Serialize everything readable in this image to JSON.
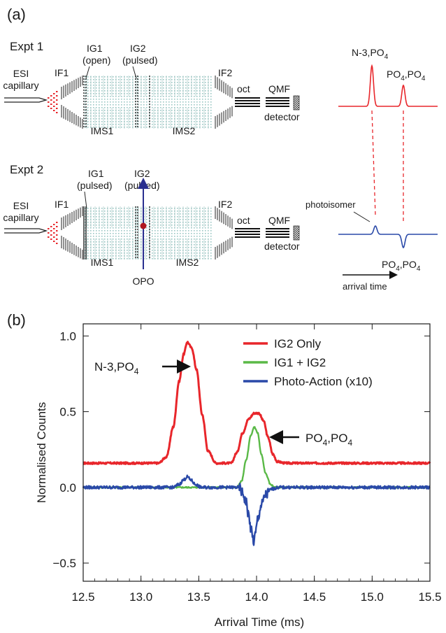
{
  "panel_a": {
    "label": "(a)",
    "expt1": {
      "title": "Expt 1",
      "esi_line1": "ESI",
      "esi_line2": "capillary",
      "if1": "IF1",
      "ig1_line1": "IG1",
      "ig1_line2": "(open)",
      "ig2_line1": "IG2",
      "ig2_line2": "(pulsed)",
      "ims1": "IMS1",
      "ims2": "IMS2",
      "if2": "IF2",
      "oct": "oct",
      "qmf": "QMF",
      "detector": "detector",
      "peak1_label": "N-3,PO",
      "peak1_sub": "4",
      "peak2_label_a": "PO",
      "peak2_sub_a": "4",
      "peak2_label_b": ",PO",
      "peak2_sub_b": "4"
    },
    "expt2": {
      "title": "Expt 2",
      "esi_line1": "ESI",
      "esi_line2": "capillary",
      "if1": "IF1",
      "ig1_line1": "IG1",
      "ig1_line2": "(pulsed)",
      "ig2_line1": "IG2",
      "ig2_line2": "(pulsed)",
      "ims1": "IMS1",
      "ims2": "IMS2",
      "if2": "IF2",
      "oct": "oct",
      "qmf": "QMF",
      "detector": "detector",
      "opo": "OPO",
      "photoisomer": "photoisomer",
      "peak_label_a": "PO",
      "peak_sub_a": "4",
      "peak_label_b": ",PO",
      "peak_sub_b": "4",
      "arrival_time": "arrival time"
    },
    "colors": {
      "expt1_trace": "#e8262b",
      "expt2_trace": "#2a49a8",
      "opo_beam": "#2a2f8f",
      "opo_dot": "#b0171f"
    }
  },
  "panel_b": {
    "label": "(b)",
    "annotation_left": "N-3,PO",
    "annotation_left_sub": "4",
    "annotation_right_a": "PO",
    "annotation_right_sub_a": "4",
    "annotation_right_b": ",PO",
    "annotation_right_sub_b": "4"
  },
  "chart_data": {
    "type": "line",
    "xlabel": "Arrival Time (ms)",
    "ylabel": "Normalised Counts",
    "xlim": [
      12.5,
      15.5
    ],
    "ylim": [
      -0.5,
      1.0
    ],
    "xticks": [
      "12.5",
      "13.0",
      "13.5",
      "14.0",
      "14.5",
      "15.0",
      "15.5"
    ],
    "yticks": [
      "−0.5",
      "0.0",
      "0.5",
      "1.0"
    ],
    "legend_position": "top-right",
    "series": [
      {
        "name": "IG2 Only",
        "color": "#e8262b",
        "x": [
          12.5,
          13.15,
          13.22,
          13.28,
          13.33,
          13.37,
          13.4,
          13.44,
          13.48,
          13.53,
          13.58,
          13.65,
          13.78,
          13.83,
          13.88,
          13.93,
          13.98,
          14.02,
          14.06,
          14.1,
          14.14,
          14.18,
          14.25,
          15.5
        ],
        "y": [
          0.16,
          0.16,
          0.2,
          0.4,
          0.7,
          0.88,
          0.96,
          0.92,
          0.78,
          0.48,
          0.24,
          0.16,
          0.16,
          0.23,
          0.36,
          0.45,
          0.49,
          0.49,
          0.44,
          0.33,
          0.22,
          0.17,
          0.16,
          0.16
        ]
      },
      {
        "name": "IG1 + IG2",
        "color": "#5ab947",
        "x": [
          12.5,
          13.83,
          13.87,
          13.91,
          13.95,
          13.98,
          14.01,
          14.04,
          14.08,
          14.12,
          14.16,
          15.5
        ],
        "y": [
          0.0,
          0.0,
          0.04,
          0.18,
          0.34,
          0.4,
          0.36,
          0.22,
          0.09,
          0.02,
          0.0,
          0.0
        ],
        "signal_x": [
          12.5,
          13.83,
          13.87,
          13.91,
          13.95,
          13.98,
          14.01,
          14.04,
          14.08,
          14.12,
          14.16,
          15.5
        ],
        "signal_y": [
          0.0,
          0.0,
          0.04,
          0.18,
          0.34,
          0.4,
          0.36,
          0.22,
          0.09,
          0.02,
          0.0,
          0.0
        ]
      },
      {
        "name": "Photo-Action (x10)",
        "color": "#2a49a8",
        "x": [
          12.5,
          13.28,
          13.33,
          13.37,
          13.4,
          13.43,
          13.47,
          13.52,
          13.85,
          13.88,
          13.91,
          13.93,
          13.95,
          13.965,
          13.975,
          13.99,
          14.01,
          14.04,
          14.08,
          14.13,
          14.2,
          15.5
        ],
        "y": [
          0.0,
          0.0,
          0.02,
          0.05,
          0.07,
          0.05,
          0.02,
          0.0,
          0.0,
          -0.04,
          -0.1,
          -0.18,
          -0.27,
          -0.33,
          -0.36,
          -0.31,
          -0.21,
          -0.12,
          -0.05,
          -0.01,
          0.0,
          0.0
        ]
      }
    ]
  }
}
